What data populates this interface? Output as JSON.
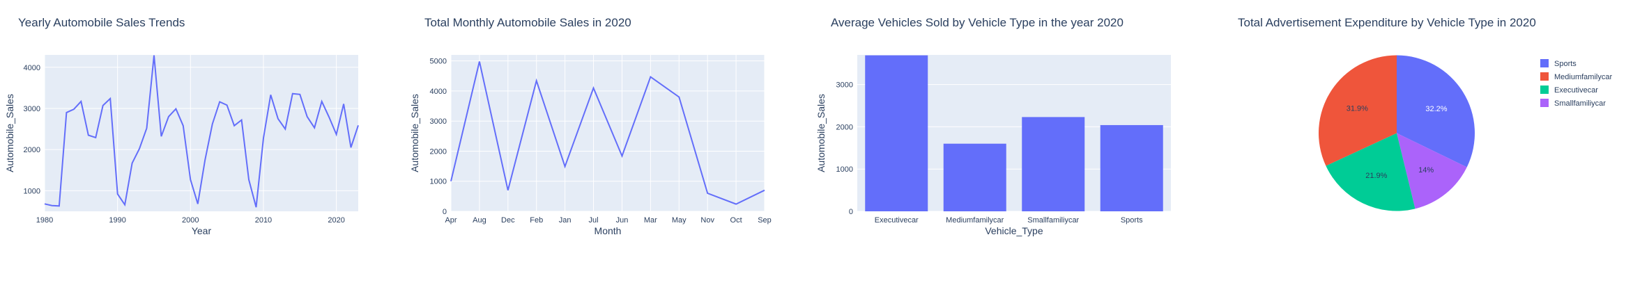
{
  "chart_data": [
    {
      "type": "line",
      "title": "Yearly Automobile Sales Trends",
      "xlabel": "Year",
      "ylabel": "Automobile_Sales",
      "xlim": [
        1980,
        2023
      ],
      "ylim": [
        500,
        4300
      ],
      "xticks": [
        1980,
        1990,
        2000,
        2010,
        2020
      ],
      "yticks": [
        1000,
        2000,
        3000,
        4000
      ],
      "grid": true,
      "color": "#636efa",
      "x": [
        1980,
        1981,
        1982,
        1983,
        1984,
        1985,
        1986,
        1987,
        1988,
        1989,
        1990,
        1991,
        1992,
        1993,
        1994,
        1995,
        1996,
        1997,
        1998,
        1999,
        2000,
        2001,
        2002,
        2003,
        2004,
        2005,
        2006,
        2007,
        2008,
        2009,
        2010,
        2011,
        2012,
        2013,
        2014,
        2015,
        2016,
        2017,
        2018,
        2019,
        2020,
        2021,
        2022,
        2023
      ],
      "y": [
        680,
        640,
        630,
        2900,
        2980,
        3170,
        2350,
        2290,
        3070,
        3240,
        920,
        660,
        1670,
        2020,
        2520,
        4290,
        2320,
        2800,
        2990,
        2580,
        1270,
        680,
        1750,
        2620,
        3160,
        3080,
        2580,
        2720,
        1270,
        600,
        2280,
        3330,
        2750,
        2500,
        3360,
        3340,
        2800,
        2530,
        3170,
        2790,
        2370,
        3110,
        2050,
        2590
      ]
    },
    {
      "type": "line",
      "title": "Total Monthly Automobile Sales in 2020",
      "xlabel": "Month",
      "ylabel": "Automobile_Sales",
      "ylim": [
        0,
        5200
      ],
      "yticks": [
        0,
        1000,
        2000,
        3000,
        4000,
        5000
      ],
      "grid": true,
      "color": "#636efa",
      "categories": [
        "Apr",
        "Aug",
        "Dec",
        "Feb",
        "Jan",
        "Jul",
        "Jun",
        "Mar",
        "May",
        "Nov",
        "Oct",
        "Sep"
      ],
      "values": [
        1000,
        4980,
        700,
        4340,
        1490,
        4100,
        1840,
        4470,
        3800,
        600,
        240,
        700
      ]
    },
    {
      "type": "bar",
      "title": "Average Vehicles Sold by Vehicle Type in the year 2020",
      "xlabel": "Vehicle_Type",
      "ylabel": "Automobile_Sales",
      "ylim": [
        0,
        3700
      ],
      "yticks": [
        0,
        1000,
        2000,
        3000
      ],
      "grid": true,
      "color": "#636efa",
      "categories": [
        "Executivecar",
        "Mediumfamilycar",
        "Smallfamiliycar",
        "Sports"
      ],
      "values": [
        3690,
        1600,
        2230,
        2040
      ]
    },
    {
      "type": "pie",
      "title": "Total Advertisement Expenditure by Vehicle Type in 2020",
      "legend": "right",
      "slices": [
        {
          "label": "Sports",
          "pct": 32.2,
          "text": "32.2%",
          "color": "#636efa",
          "text_color": "#ffffff"
        },
        {
          "label": "Smallfamiliycar",
          "pct": 14.0,
          "text": "14%",
          "color": "#ab63fa",
          "text_color": "#2a3f5f"
        },
        {
          "label": "Executivecar",
          "pct": 21.9,
          "text": "21.9%",
          "color": "#00cc96",
          "text_color": "#2a3f5f"
        },
        {
          "label": "Mediumfamilycar",
          "pct": 31.9,
          "text": "31.9%",
          "color": "#ef553b",
          "text_color": "#2a3f5f"
        }
      ],
      "legend_order": [
        "Sports",
        "Mediumfamilycar",
        "Executivecar",
        "Smallfamiliycar"
      ]
    }
  ]
}
